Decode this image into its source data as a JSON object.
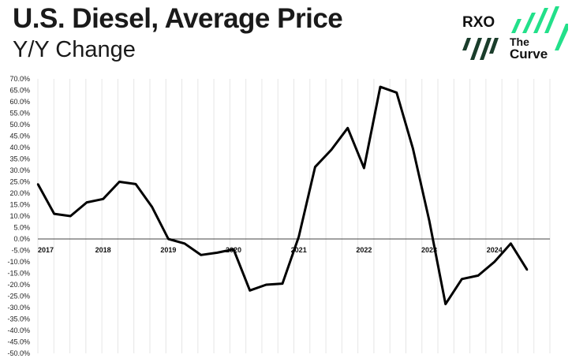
{
  "header": {
    "title": "U.S. Diesel, Average Price",
    "subtitle": "Y/Y Change"
  },
  "logo": {
    "brand": "RXO",
    "product_line1": "The",
    "product_line2": "Curve",
    "brand_color": "#111111",
    "accent_colors": [
      "#1a3d2b",
      "#22e08a"
    ]
  },
  "chart_data": {
    "type": "line",
    "title": "U.S. Diesel, Average Price",
    "subtitle": "Y/Y Change",
    "xlabel": "",
    "ylabel": "",
    "ylim": [
      -50,
      70
    ],
    "xlim": [
      2017,
      2024.85
    ],
    "y_ticks": [
      "70.0%",
      "65.0%",
      "60.0%",
      "55.0%",
      "50.0%",
      "45.0%",
      "40.0%",
      "35.0%",
      "30.0%",
      "25.0%",
      "20.0%",
      "15.0%",
      "10.0%",
      "5.0%",
      "0.0%",
      "-5.0%",
      "-10.0%",
      "-15.0%",
      "-20.0%",
      "-25.0%",
      "-30.0%",
      "-35.0%",
      "-40.0%",
      "-45.0%",
      "-50.0%"
    ],
    "x_ticks": [
      {
        "year": 2017,
        "label": "2017"
      },
      {
        "year": 2018,
        "label": "2018"
      },
      {
        "year": 2019,
        "label": "2019"
      },
      {
        "year": 2020,
        "label": "2020"
      },
      {
        "year": 2021,
        "label": "2021"
      },
      {
        "year": 2022,
        "label": "2022"
      },
      {
        "year": 2023,
        "label": "2023"
      },
      {
        "year": 2024,
        "label": "2024"
      }
    ],
    "grid": "vertical",
    "line_color": "#000000",
    "series": [
      {
        "x": [
          2017.0,
          2017.25,
          2017.5,
          2017.75,
          2018.0,
          2018.25,
          2018.5,
          2018.75,
          2019.0,
          2019.25,
          2019.5,
          2019.75,
          2020.0,
          2020.25,
          2020.5,
          2020.75,
          2021.0,
          2021.25,
          2021.5,
          2021.75,
          2022.0,
          2022.25,
          2022.5,
          2022.75,
          2023.0,
          2023.25,
          2023.5,
          2023.75,
          2024.0,
          2024.25,
          2024.5
        ],
        "y": [
          24.0,
          11.0,
          10.0,
          16.0,
          17.5,
          25.0,
          24.0,
          14.0,
          0.0,
          -2.0,
          -7.0,
          -6.0,
          -4.5,
          -22.5,
          -20.0,
          -19.5,
          1.0,
          31.5,
          39.0,
          48.5,
          31.0,
          66.5,
          64.0,
          39.5,
          8.0,
          -28.5,
          -17.5,
          -16.0,
          -10.0,
          -2.0,
          -13.5
        ]
      }
    ]
  }
}
